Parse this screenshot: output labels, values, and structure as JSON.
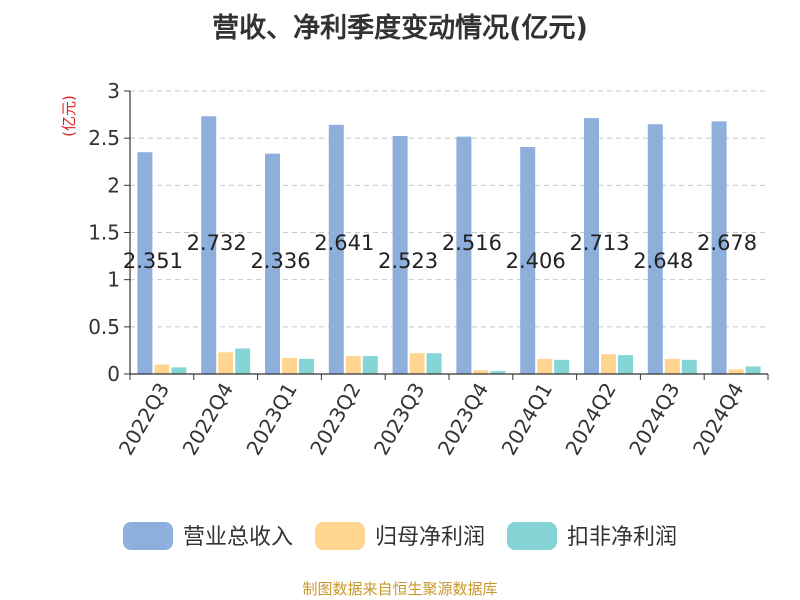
{
  "title": "营收、净利季度变动情况(亿元)",
  "footer": "制图数据来自恒生聚源数据库",
  "chart_data": {
    "type": "bar",
    "title": "营收、净利季度变动情况(亿元)",
    "ylabel": "(亿元)",
    "xlabel": "",
    "ylim": [
      0,
      3
    ],
    "yticks": [
      0,
      0.5,
      1,
      1.5,
      2,
      2.5,
      3
    ],
    "ytick_labels": [
      "0",
      "0.5",
      "1",
      "1.5",
      "2",
      "2.5",
      "3"
    ],
    "grid": true,
    "legend_position": "bottom",
    "categories": [
      "2022Q3",
      "2022Q4",
      "2023Q1",
      "2023Q2",
      "2023Q3",
      "2023Q4",
      "2024Q1",
      "2024Q2",
      "2024Q3",
      "2024Q4"
    ],
    "series": [
      {
        "name": "营业总收入",
        "color": "#8eaedb",
        "values": [
          2.351,
          2.732,
          2.336,
          2.641,
          2.523,
          2.516,
          2.406,
          2.713,
          2.648,
          2.678
        ],
        "data_labels": [
          "2.351",
          "2.732",
          "2.336",
          "2.641",
          "2.523",
          "2.516",
          "2.406",
          "2.713",
          "2.648",
          "2.678"
        ]
      },
      {
        "name": "归母净利润",
        "color": "#ffd591",
        "values": [
          0.1,
          0.23,
          0.17,
          0.19,
          0.22,
          0.04,
          0.16,
          0.21,
          0.16,
          0.05
        ]
      },
      {
        "name": "扣非净利润",
        "color": "#85d4d6",
        "values": [
          0.07,
          0.27,
          0.16,
          0.19,
          0.22,
          0.03,
          0.15,
          0.2,
          0.15,
          0.08
        ]
      }
    ]
  }
}
